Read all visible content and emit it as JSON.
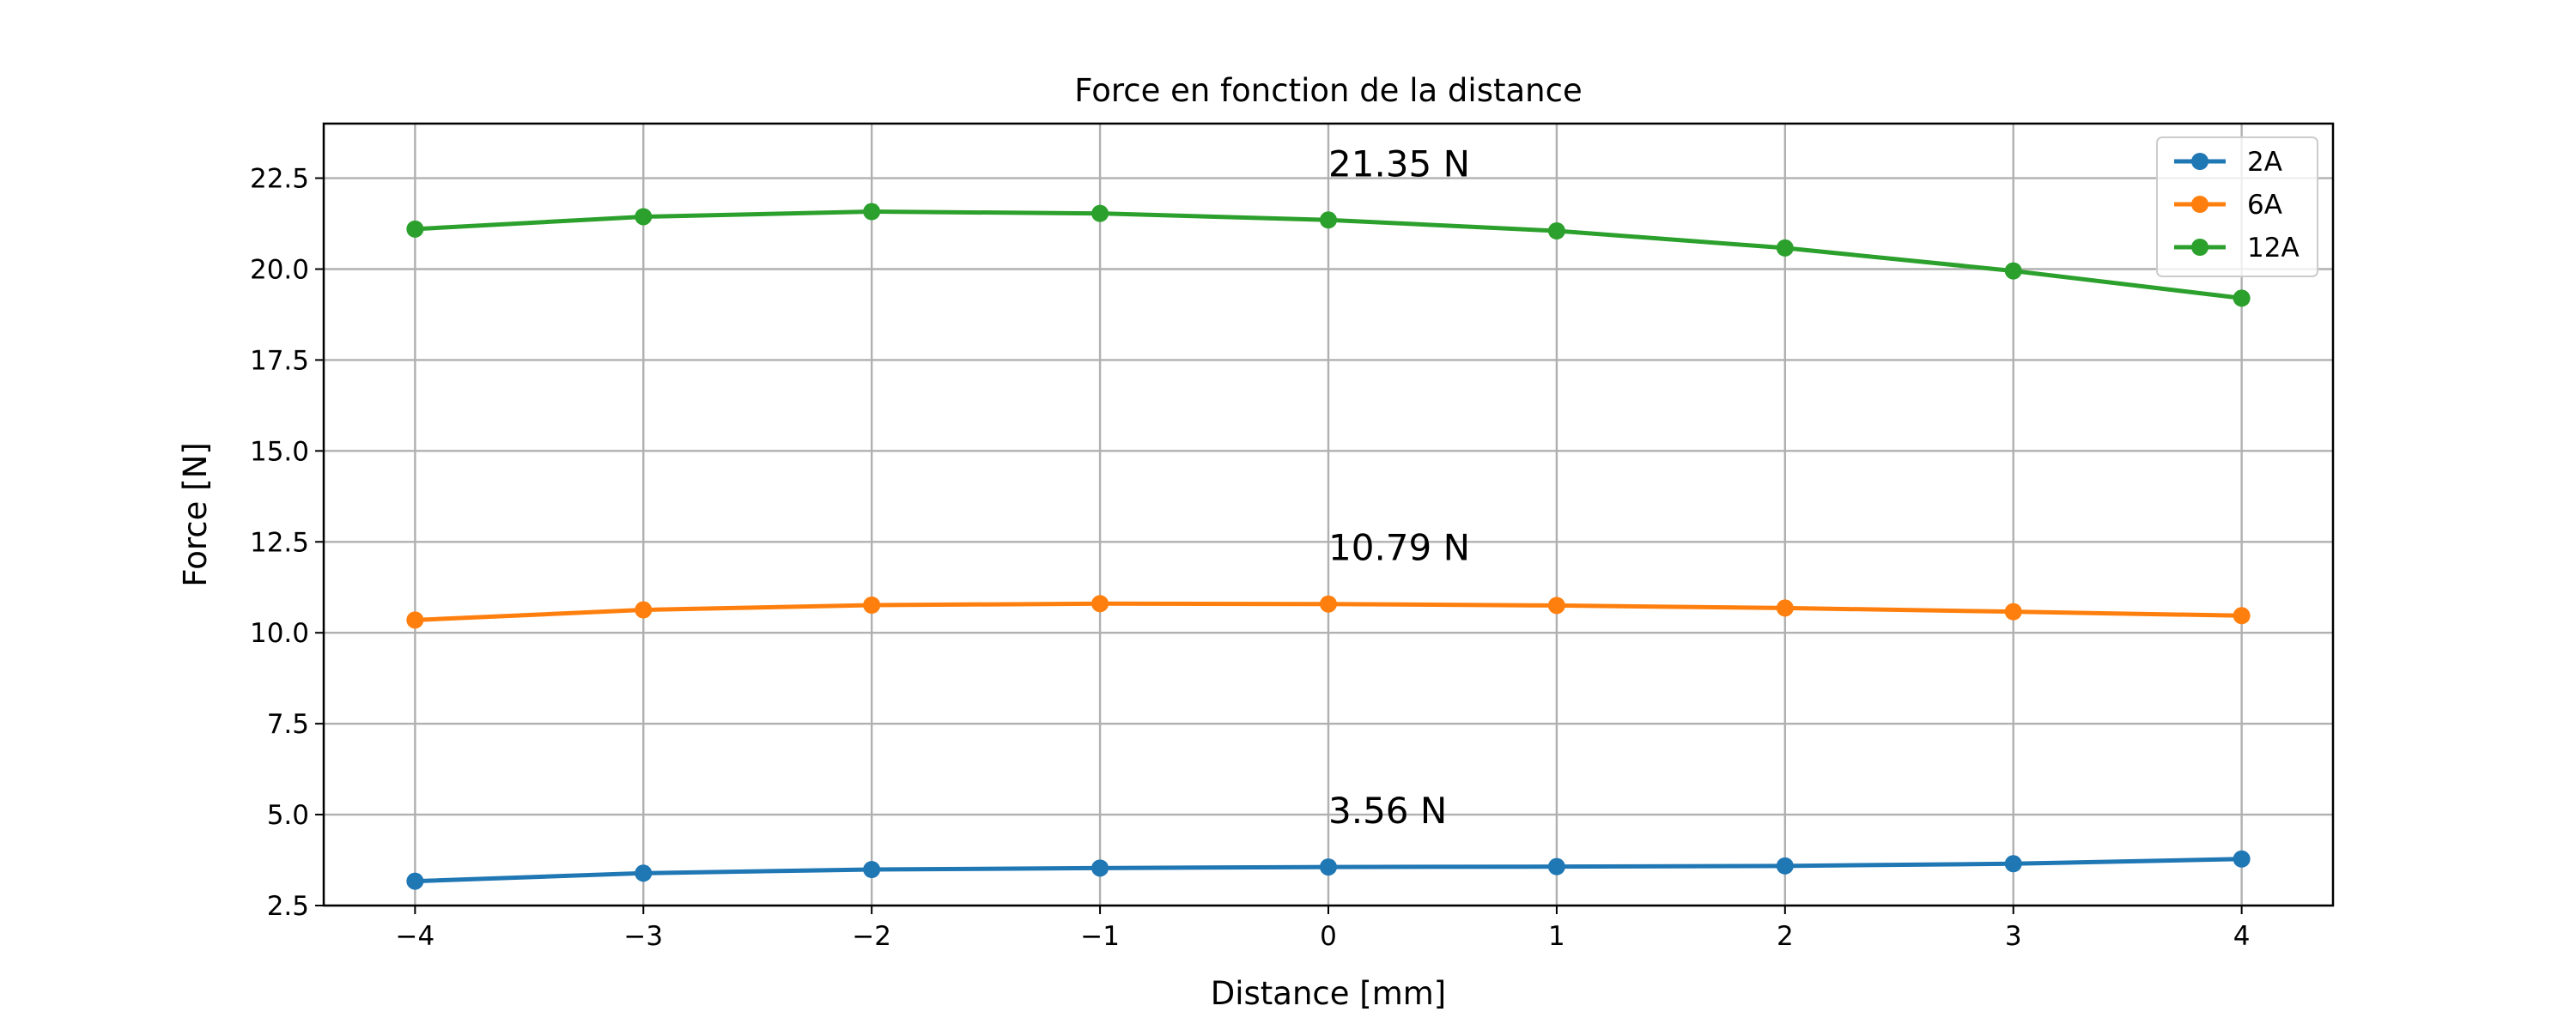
{
  "chart_data": {
    "type": "line",
    "title": "Force en fonction de la distance",
    "xlabel": "Distance [mm]",
    "ylabel": "Force [N]",
    "x": [
      -4,
      -3,
      -2,
      -1,
      0,
      1,
      2,
      3,
      4
    ],
    "xlim": [
      -4.4,
      4.4
    ],
    "ylim": [
      2.5,
      24.0
    ],
    "x_ticks": [
      -4,
      -3,
      -2,
      -1,
      0,
      1,
      2,
      3,
      4
    ],
    "x_tick_labels": [
      "−4",
      "−3",
      "−2",
      "−1",
      "0",
      "1",
      "2",
      "3",
      "4"
    ],
    "y_ticks": [
      2.5,
      5.0,
      7.5,
      10.0,
      12.5,
      15.0,
      17.5,
      20.0,
      22.5
    ],
    "y_tick_labels": [
      "2.5",
      "5.0",
      "7.5",
      "10.0",
      "12.5",
      "15.0",
      "17.5",
      "20.0",
      "22.5"
    ],
    "grid": true,
    "legend_position": "top-right",
    "series": [
      {
        "name": "2A",
        "color": "#1f77b4",
        "values": [
          3.17,
          3.39,
          3.49,
          3.53,
          3.56,
          3.57,
          3.59,
          3.65,
          3.78
        ]
      },
      {
        "name": "6A",
        "color": "#ff7f0e",
        "values": [
          10.35,
          10.63,
          10.76,
          10.8,
          10.79,
          10.75,
          10.68,
          10.58,
          10.47
        ]
      },
      {
        "name": "12A",
        "color": "#2ca02c",
        "values": [
          21.1,
          21.44,
          21.58,
          21.53,
          21.35,
          21.05,
          20.58,
          19.95,
          19.2
        ]
      }
    ],
    "annotations": [
      {
        "text": "21.35 N",
        "x": 0,
        "y": 22.55
      },
      {
        "text": "10.79 N",
        "x": 0,
        "y": 12.0
      },
      {
        "text": "3.56 N",
        "x": 0,
        "y": 4.77
      }
    ]
  }
}
